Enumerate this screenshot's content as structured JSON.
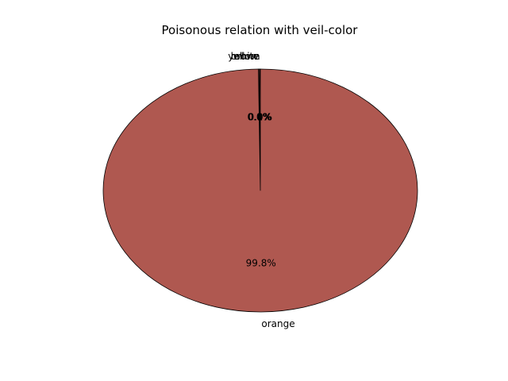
{
  "chart_data": {
    "type": "pie",
    "title": "Poisonous relation with veil-color",
    "categories": [
      "brown",
      "white",
      "yellow",
      "orange"
    ],
    "values": [
      0.05,
      0.1,
      0.05,
      99.8
    ],
    "percent_labels": [
      "0.0%",
      "0.1%",
      "0.0%",
      "99.8%"
    ],
    "colors": [
      "#af5850",
      "#af5850",
      "#af5850",
      "#af5850"
    ],
    "start_angle_deg": 90,
    "direction": "counterclockwise",
    "edge_color": "#000000",
    "legend": "none"
  }
}
